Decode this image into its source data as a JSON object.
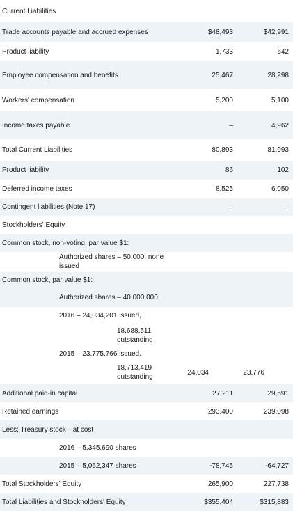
{
  "rows": [
    {
      "label": "Current Liabilities",
      "v2016": "",
      "v2015": ""
    },
    {
      "label": "Trade accounts payable and accrued expenses",
      "v2016": "$48,493",
      "v2015": "$42,991"
    },
    {
      "label": "Product liability",
      "v2016": "1,733",
      "v2015": "642"
    },
    {
      "label": "Employee compensation and benefits",
      "v2016": "25,467",
      "v2015": "28,298"
    },
    {
      "label": "Workers' compensation",
      "v2016": "5,200",
      "v2015": "5,100"
    },
    {
      "label": "Income taxes payable",
      "v2016": "–",
      "v2015": "4,962"
    },
    {
      "label": "Total Current Liabilities",
      "v2016": "80,893",
      "v2015": "81,993"
    },
    {
      "label": "Product liability",
      "v2016": "86",
      "v2015": "102"
    },
    {
      "label": "Deferred income taxes",
      "v2016": "8,525",
      "v2015": "6,050"
    },
    {
      "label": "Contingent liabilities (Note 17)",
      "v2016": "–",
      "v2015": "–"
    },
    {
      "label": "Stockholders' Equity",
      "v2016": "",
      "v2015": ""
    },
    {
      "label": "Common stock, non-voting, par value $1:",
      "v2016": "",
      "v2015": ""
    },
    {
      "label": "Authorized shares – 50,000; none issued",
      "v2016": "",
      "v2015": ""
    },
    {
      "label": "Common stock, par value $1:",
      "v2016": "",
      "v2015": ""
    },
    {
      "label": "Authorized shares – 40,000,000",
      "v2016": "",
      "v2015": ""
    },
    {
      "label": "2016 – 24,034,201 issued,",
      "v2016": "",
      "v2015": ""
    },
    {
      "label": "18,688,511 outstanding",
      "v2016": "",
      "v2015": ""
    },
    {
      "label": "2015 – 23,775,766 issued,",
      "v2016": "",
      "v2015": ""
    },
    {
      "label": "18,713,419 outstanding",
      "v2016": "24,034",
      "v2015": "23,776"
    },
    {
      "label": "Additional paid-in capital",
      "v2016": "27,211",
      "v2015": "29,591"
    },
    {
      "label": "Retained earnings",
      "v2016": "293,400",
      "v2015": "239,098"
    },
    {
      "label": "Less: Treasury stock—at cost",
      "v2016": "",
      "v2015": ""
    },
    {
      "label": "2016 – 5,345,690 shares",
      "v2016": "",
      "v2015": ""
    },
    {
      "label": "2015 – 5,062,347 shares",
      "v2016": "-78,745",
      "v2015": "-64,727"
    },
    {
      "label": "Total Stockholders' Equity",
      "v2016": "265,900",
      "v2015": "227,738"
    },
    {
      "label": "Total Liabilities and Stockholders' Equity",
      "v2016": "$355,404",
      "v2015": "$315,883"
    }
  ]
}
